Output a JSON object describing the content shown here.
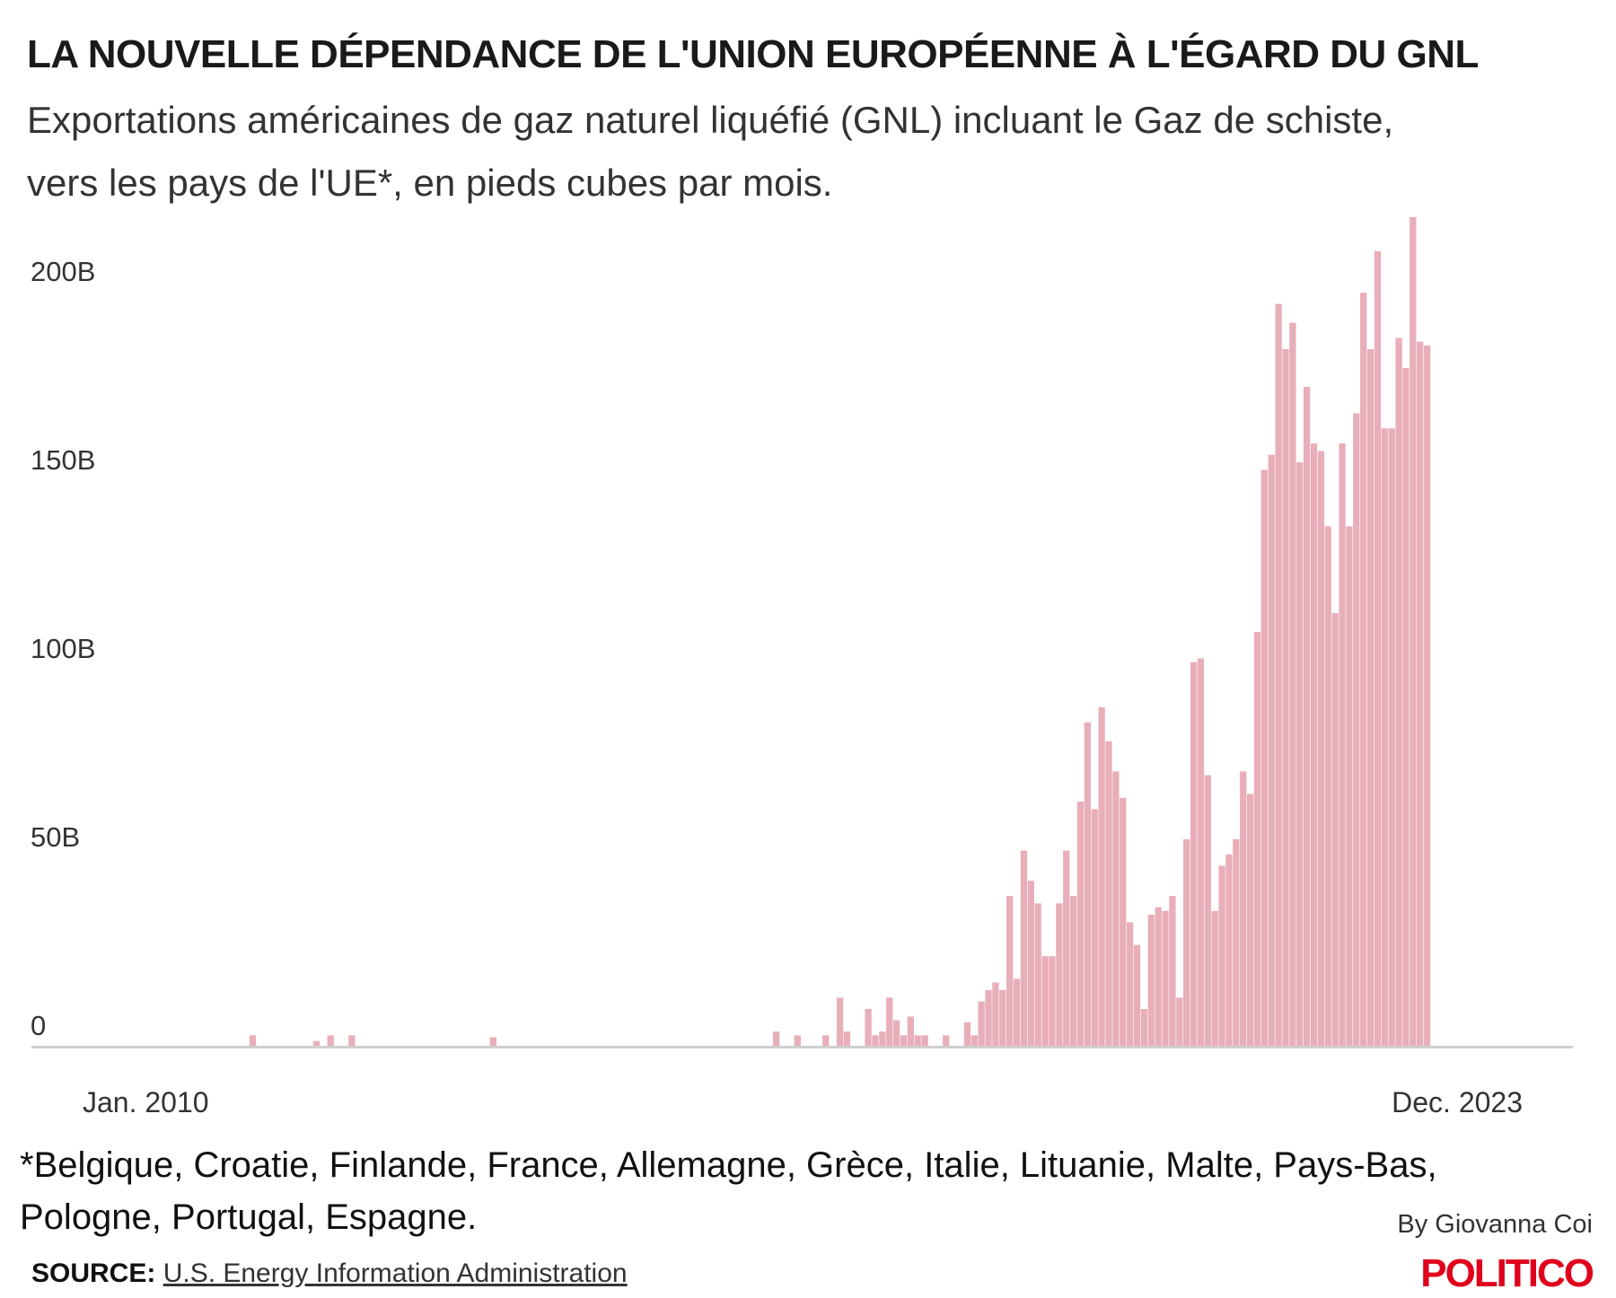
{
  "header": {
    "title": "LA NOUVELLE DÉPENDANCE DE L'UNION EUROPÉENNE À L'ÉGARD DU GNL",
    "subtitle_line1": "Exportations américaines de gaz naturel liquéfié (GNL) incluant le Gaz de schiste,",
    "subtitle_line2": "vers les pays de l'UE*, en pieds cubes par mois."
  },
  "footer": {
    "note_line1": "*Belgique, Croatie, Finlande, France, Allemagne, Grèce, Italie, Lituanie, Malte, Pays-Bas,",
    "note_line2": "Pologne, Portugal, Espagne.",
    "byline": "By Giovanna Coi",
    "source_label": "SOURCE:",
    "source_link": "U.S. Energy Information Administration",
    "logo": "POLITICO"
  },
  "colors": {
    "bar": "#e8aeb9",
    "axis": "#cfcfcf",
    "logo": "#e0001b"
  },
  "chart_data": {
    "type": "bar",
    "title": "LA NOUVELLE DÉPENDANCE DE L'UNION EUROPÉENNE À L'ÉGARD DU GNL",
    "xlabel": "",
    "ylabel": "Pieds cubes par mois",
    "x_start": "Jan. 2010",
    "x_end": "Dec. 2023",
    "x_tick_labels": [
      "Jan. 2010",
      "Dec. 2023"
    ],
    "y_ticks": [
      0,
      50,
      100,
      150,
      200
    ],
    "y_tick_labels": [
      "0",
      "50B",
      "100B",
      "150B",
      "200B"
    ],
    "ylim": [
      0,
      225
    ],
    "units": "billion cubic feet",
    "grid": false,
    "values": [
      0,
      3,
      0,
      0,
      0,
      0,
      0,
      0,
      0,
      0,
      1.5,
      0,
      3,
      0,
      0,
      3,
      0,
      0,
      0,
      0,
      0,
      0,
      0,
      0,
      0,
      0,
      0,
      0,
      0,
      0,
      0,
      0,
      0,
      0,
      0,
      2.5,
      0,
      0,
      0,
      0,
      0,
      0,
      0,
      0,
      0,
      0,
      0,
      0,
      0,
      0,
      0,
      0,
      0,
      0,
      0,
      0,
      0,
      0,
      0,
      0,
      0,
      0,
      0,
      0,
      0,
      0,
      0,
      0,
      0,
      0,
      0,
      0,
      0,
      0,
      0,
      4,
      0,
      0,
      3,
      0,
      0,
      0,
      3,
      0,
      13,
      4,
      0,
      0,
      10,
      3,
      4,
      13,
      7,
      3,
      8,
      3,
      3,
      0,
      0,
      3,
      0,
      0,
      6.5,
      3,
      12,
      15,
      17,
      15,
      40,
      18,
      52,
      44,
      38,
      24,
      24,
      38,
      52,
      40,
      65,
      86,
      63,
      90,
      81,
      73,
      66,
      33,
      27,
      10,
      35,
      37,
      36,
      40,
      13,
      55,
      102,
      103,
      72,
      36,
      48,
      51,
      55,
      73,
      67,
      110,
      153,
      157,
      197,
      185,
      192,
      155,
      175,
      160,
      158,
      138,
      115,
      160,
      138,
      168,
      200,
      185,
      211,
      164,
      164,
      188,
      180,
      220,
      187,
      186
    ]
  }
}
